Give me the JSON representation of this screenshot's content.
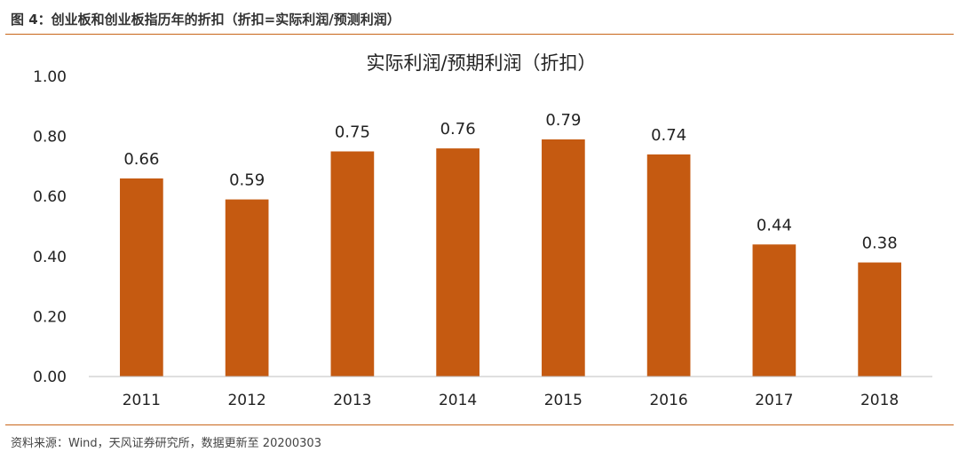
{
  "figure": {
    "title": "图 4：创业板和创业板指历年的折扣（折扣=实际利润/预测利润）",
    "source": "资料来源：Wind，天风证券研究所，数据更新至 20200303"
  },
  "colors": {
    "bar": "#c55a11",
    "rule": "#c8661a",
    "axis": "#bfbfbf"
  },
  "chart_data": {
    "type": "bar",
    "title": "实际利润/预期利润（折扣）",
    "categories": [
      "2011",
      "2012",
      "2013",
      "2014",
      "2015",
      "2016",
      "2017",
      "2018"
    ],
    "values": [
      0.66,
      0.59,
      0.75,
      0.76,
      0.79,
      0.74,
      0.44,
      0.38
    ],
    "data_labels": [
      "0.66",
      "0.59",
      "0.75",
      "0.76",
      "0.79",
      "0.74",
      "0.44",
      "0.38"
    ],
    "yticks": [
      "0.00",
      "0.20",
      "0.40",
      "0.60",
      "0.80",
      "1.00"
    ],
    "ylim": [
      0,
      1
    ],
    "xlabel": "",
    "ylabel": "",
    "grid": false,
    "legend": "none"
  }
}
